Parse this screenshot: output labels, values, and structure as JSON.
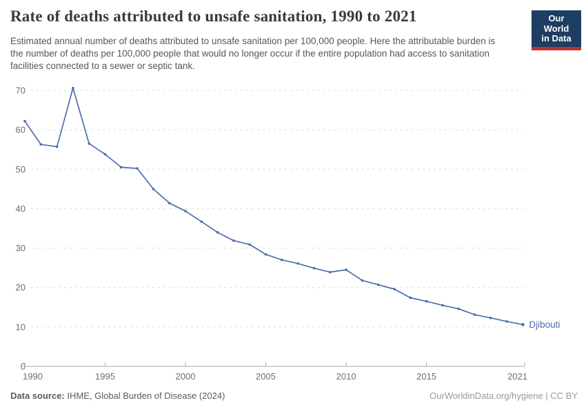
{
  "header": {
    "title": "Rate of deaths attributed to unsafe sanitation, 1990 to 2021",
    "subtitle": "Estimated annual number of deaths attributed to unsafe sanitation per 100,000 people. Here the attributable burden is the number of deaths per 100,000 people that would no longer occur if the entire population had access to sanitation facilities connected to a sewer or septic tank.",
    "logo": {
      "line1": "Our World",
      "line2": "in Data",
      "bg_color": "#1d3d63",
      "accent_color": "#c5302f"
    }
  },
  "chart_data": {
    "type": "line",
    "title": "Rate of deaths attributed to unsafe sanitation, 1990 to 2021",
    "xlabel": "",
    "ylabel": "",
    "xlim": [
      1990,
      2021
    ],
    "ylim": [
      0,
      70
    ],
    "x_ticks": [
      1990,
      1995,
      2000,
      2005,
      2010,
      2015,
      2021
    ],
    "y_ticks": [
      0,
      10,
      20,
      30,
      40,
      50,
      60,
      70
    ],
    "grid": "horizontal-dashed",
    "legend_position": "end-of-line",
    "end_label": "Djibouti",
    "series": [
      {
        "name": "Djibouti",
        "color": "#4C6DAE",
        "x": [
          1990,
          1991,
          1992,
          1993,
          1994,
          1995,
          1996,
          1997,
          1998,
          1999,
          2000,
          2001,
          2002,
          2003,
          2004,
          2005,
          2006,
          2007,
          2008,
          2009,
          2010,
          2011,
          2012,
          2013,
          2014,
          2015,
          2016,
          2017,
          2018,
          2019,
          2020,
          2021
        ],
        "values": [
          62.2,
          56.3,
          55.7,
          70.6,
          56.5,
          53.8,
          50.5,
          50.2,
          45.0,
          41.4,
          39.4,
          36.7,
          34.0,
          31.9,
          30.9,
          28.4,
          27.0,
          26.1,
          24.9,
          23.9,
          24.5,
          21.8,
          20.7,
          19.6,
          17.4,
          16.5,
          15.5,
          14.6,
          13.1,
          12.3,
          11.4,
          10.6
        ]
      }
    ]
  },
  "footer": {
    "source_label": "Data source:",
    "source_value": " IHME, Global Burden of Disease (2024)",
    "attribution": "OurWorldinData.org/hygiene | CC BY"
  }
}
